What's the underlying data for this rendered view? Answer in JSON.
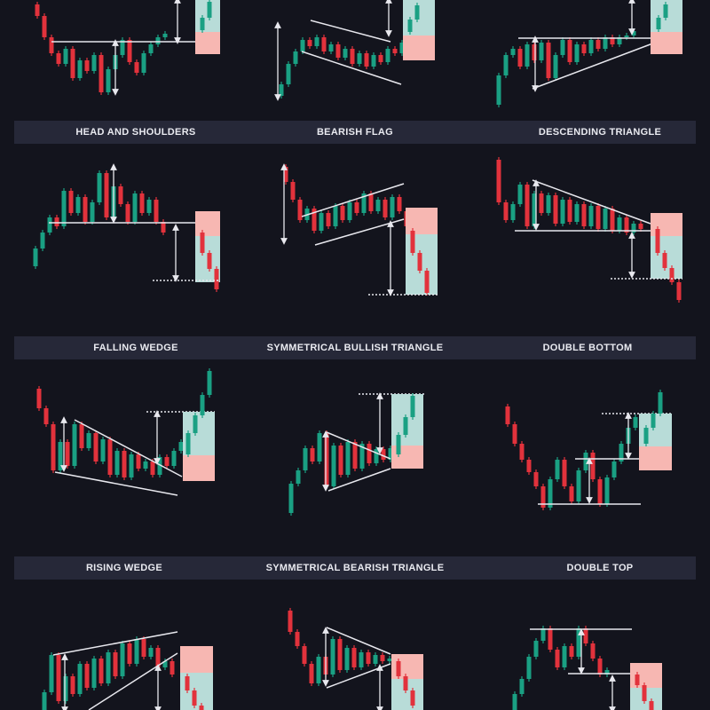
{
  "colors": {
    "background": "#13141d",
    "label_band": "#262838",
    "label_text": "#e9eaf0",
    "bullish": "#1aa083",
    "bearish": "#e2323c",
    "target_zone_green": "#b8dcd8",
    "stop_zone_red": "#f7b7b2",
    "line": "#e8e8ee"
  },
  "rows": [
    {
      "labels": []
    },
    {
      "labels": [
        "HEAD AND SHOULDERS",
        "BEARISH FLAG",
        "DESCENDING TRIANGLE"
      ]
    },
    {
      "labels": [
        "FALLING WEDGE",
        "SYMMETRICAL BULLISH  TRIANGLE",
        "DOUBLE BOTTOM"
      ]
    },
    {
      "labels": [
        "RISING WEDGE",
        "SYMMETRICAL  BEARISH TRIANGLE",
        "DOUBLE  TOP"
      ]
    }
  ]
}
